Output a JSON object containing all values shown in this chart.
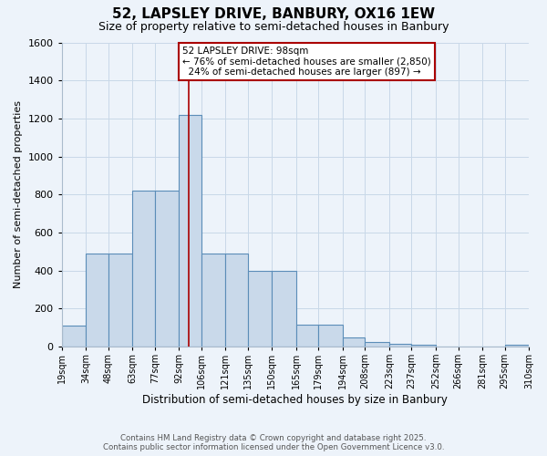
{
  "title_line1": "52, LAPSLEY DRIVE, BANBURY, OX16 1EW",
  "title_line2": "Size of property relative to semi-detached houses in Banbury",
  "xlabel": "Distribution of semi-detached houses by size in Banbury",
  "ylabel": "Number of semi-detached properties",
  "bin_edges": [
    19,
    34,
    48,
    63,
    77,
    92,
    106,
    121,
    135,
    150,
    165,
    179,
    194,
    208,
    223,
    237,
    252,
    266,
    281,
    295,
    310
  ],
  "bar_heights": [
    110,
    490,
    490,
    820,
    820,
    1220,
    490,
    490,
    400,
    400,
    115,
    115,
    50,
    25,
    15,
    10,
    0,
    0,
    0,
    10
  ],
  "bar_color": "#c9d9ea",
  "bar_edge_color": "#5b8db8",
  "property_size": 98,
  "property_label": "52 LAPSLEY DRIVE: 98sqm",
  "pct_smaller": 76,
  "pct_larger": 24,
  "n_smaller": 2850,
  "n_larger": 897,
  "annotation_box_color": "#ffffff",
  "annotation_box_edge": "#aa0000",
  "vline_color": "#aa0000",
  "ylim": [
    0,
    1600
  ],
  "yticks": [
    0,
    200,
    400,
    600,
    800,
    1000,
    1200,
    1400,
    1600
  ],
  "grid_color": "#c8d8e8",
  "bg_color": "#edf3fa",
  "footer_line1": "Contains HM Land Registry data © Crown copyright and database right 2025.",
  "footer_line2": "Contains public sector information licensed under the Open Government Licence v3.0."
}
